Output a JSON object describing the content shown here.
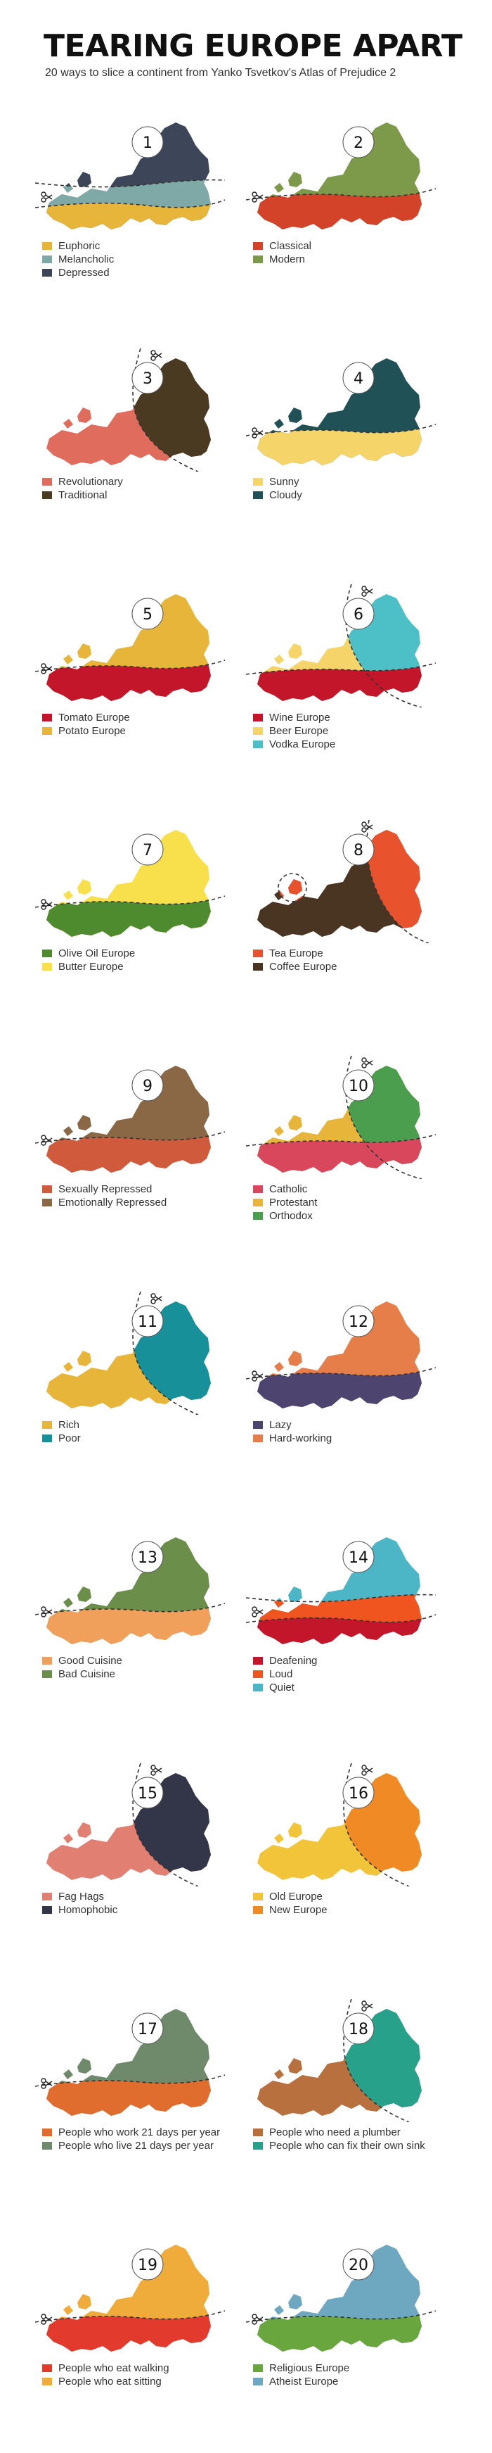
{
  "header": {
    "title": "TEARING EUROPE APART",
    "subtitle": "20 ways to slice a continent from Yanko Tsvetkov's Atlas of Prejudice 2"
  },
  "maps": [
    {
      "number": "1",
      "cut": "bands3",
      "colors": [
        "#e6b53a",
        "#7fa9a6",
        "#3d4558"
      ],
      "legend": [
        {
          "label": "Euphoric",
          "color": "#e6b53a"
        },
        {
          "label": "Melancholic",
          "color": "#7fa9a6"
        },
        {
          "label": "Depressed",
          "color": "#3d4558"
        }
      ]
    },
    {
      "number": "2",
      "cut": "south",
      "colors": [
        "#d2432a",
        "#7d9a4a"
      ],
      "legend": [
        {
          "label": "Classical",
          "color": "#d2432a"
        },
        {
          "label": "Modern",
          "color": "#7d9a4a"
        }
      ]
    },
    {
      "number": "3",
      "cut": "eastwest",
      "colors": [
        "#e06c5d",
        "#4a3a22"
      ],
      "legend": [
        {
          "label": "Revolutionary",
          "color": "#e06c5d"
        },
        {
          "label": "Traditional",
          "color": "#4a3a22"
        }
      ]
    },
    {
      "number": "4",
      "cut": "south",
      "colors": [
        "#f5d46a",
        "#1f5156"
      ],
      "legend": [
        {
          "label": "Sunny",
          "color": "#f5d46a"
        },
        {
          "label": "Cloudy",
          "color": "#1f5156"
        }
      ]
    },
    {
      "number": "5",
      "cut": "south",
      "colors": [
        "#c3162a",
        "#e6b53a"
      ],
      "legend": [
        {
          "label": "Tomato Europe",
          "color": "#c3162a"
        },
        {
          "label": "Potato Europe",
          "color": "#e6b53a"
        }
      ]
    },
    {
      "number": "6",
      "cut": "three",
      "colors": [
        "#c3162a",
        "#f5d46a",
        "#4cc0c6"
      ],
      "legend": [
        {
          "label": "Wine Europe",
          "color": "#c3162a"
        },
        {
          "label": "Beer Europe",
          "color": "#f5d46a"
        },
        {
          "label": "Vodka Europe",
          "color": "#4cc0c6"
        }
      ]
    },
    {
      "number": "7",
      "cut": "south",
      "colors": [
        "#4e8a2e",
        "#f7e04c"
      ],
      "legend": [
        {
          "label": "Olive Oil Europe",
          "color": "#4e8a2e"
        },
        {
          "label": "Butter Europe",
          "color": "#f7e04c"
        }
      ]
    },
    {
      "number": "8",
      "cut": "tea",
      "colors": [
        "#e8532d",
        "#4a3422"
      ],
      "legend": [
        {
          "label": "Tea Europe",
          "color": "#e8532d"
        },
        {
          "label": "Coffee Europe",
          "color": "#4a3422"
        }
      ]
    },
    {
      "number": "9",
      "cut": "south",
      "colors": [
        "#cf5a3c",
        "#8a6845"
      ],
      "legend": [
        {
          "label": "Sexually Repressed",
          "color": "#cf5a3c"
        },
        {
          "label": "Emotionally Repressed",
          "color": "#8a6845"
        }
      ]
    },
    {
      "number": "10",
      "cut": "three",
      "colors": [
        "#d9475c",
        "#e6b53a",
        "#4a9e4d"
      ],
      "legend": [
        {
          "label": "Catholic",
          "color": "#d9475c"
        },
        {
          "label": "Protestant",
          "color": "#e6b53a"
        },
        {
          "label": "Orthodox",
          "color": "#4a9e4d"
        }
      ]
    },
    {
      "number": "11",
      "cut": "eastwest",
      "colors": [
        "#e6b53a",
        "#18909a"
      ],
      "legend": [
        {
          "label": "Rich",
          "color": "#e6b53a"
        },
        {
          "label": "Poor",
          "color": "#18909a"
        }
      ]
    },
    {
      "number": "12",
      "cut": "south",
      "colors": [
        "#4d4470",
        "#e67e4a"
      ],
      "legend": [
        {
          "label": "Lazy",
          "color": "#4d4470"
        },
        {
          "label": "Hard-working",
          "color": "#e67e4a"
        }
      ]
    },
    {
      "number": "13",
      "cut": "south",
      "colors": [
        "#f0a05a",
        "#6b8f4a"
      ],
      "legend": [
        {
          "label": "Good Cuisine",
          "color": "#f0a05a"
        },
        {
          "label": "Bad Cuisine",
          "color": "#6b8f4a"
        }
      ]
    },
    {
      "number": "14",
      "cut": "bands3",
      "colors": [
        "#c3162a",
        "#f0551f",
        "#4cb6c6"
      ],
      "legend": [
        {
          "label": "Deafening",
          "color": "#c3162a"
        },
        {
          "label": "Loud",
          "color": "#f0551f"
        },
        {
          "label": "Quiet",
          "color": "#4cb6c6"
        }
      ]
    },
    {
      "number": "15",
      "cut": "eastwest",
      "colors": [
        "#e07f72",
        "#323648"
      ],
      "legend": [
        {
          "label": "Fag Hags",
          "color": "#e07f72"
        },
        {
          "label": "Homophobic",
          "color": "#323648"
        }
      ]
    },
    {
      "number": "16",
      "cut": "eastwest",
      "colors": [
        "#f2c43a",
        "#f08a24"
      ],
      "legend": [
        {
          "label": "Old Europe",
          "color": "#f2c43a"
        },
        {
          "label": "New Europe",
          "color": "#f08a24"
        }
      ]
    },
    {
      "number": "17",
      "cut": "south",
      "colors": [
        "#e06d2e",
        "#6e8a6b"
      ],
      "legend": [
        {
          "label": "People who work 21 days per year",
          "color": "#e06d2e"
        },
        {
          "label": "People who live 21 days per year",
          "color": "#6e8a6b"
        }
      ]
    },
    {
      "number": "18",
      "cut": "eastwest",
      "colors": [
        "#b8703f",
        "#28a18a"
      ],
      "legend": [
        {
          "label": "People who need a plumber",
          "color": "#b8703f"
        },
        {
          "label": "People who can fix their own sink",
          "color": "#28a18a"
        }
      ]
    },
    {
      "number": "19",
      "cut": "south",
      "colors": [
        "#e23a2c",
        "#f0ac3a"
      ],
      "legend": [
        {
          "label": "People who eat walking",
          "color": "#e23a2c"
        },
        {
          "label": "People who eat sitting",
          "color": "#f0ac3a"
        }
      ]
    },
    {
      "number": "20",
      "cut": "south",
      "colors": [
        "#6aa63e",
        "#6ea8c0"
      ],
      "legend": [
        {
          "label": "Religious Europe",
          "color": "#6aa63e"
        },
        {
          "label": "Atheist Europe",
          "color": "#6ea8c0"
        }
      ]
    }
  ]
}
